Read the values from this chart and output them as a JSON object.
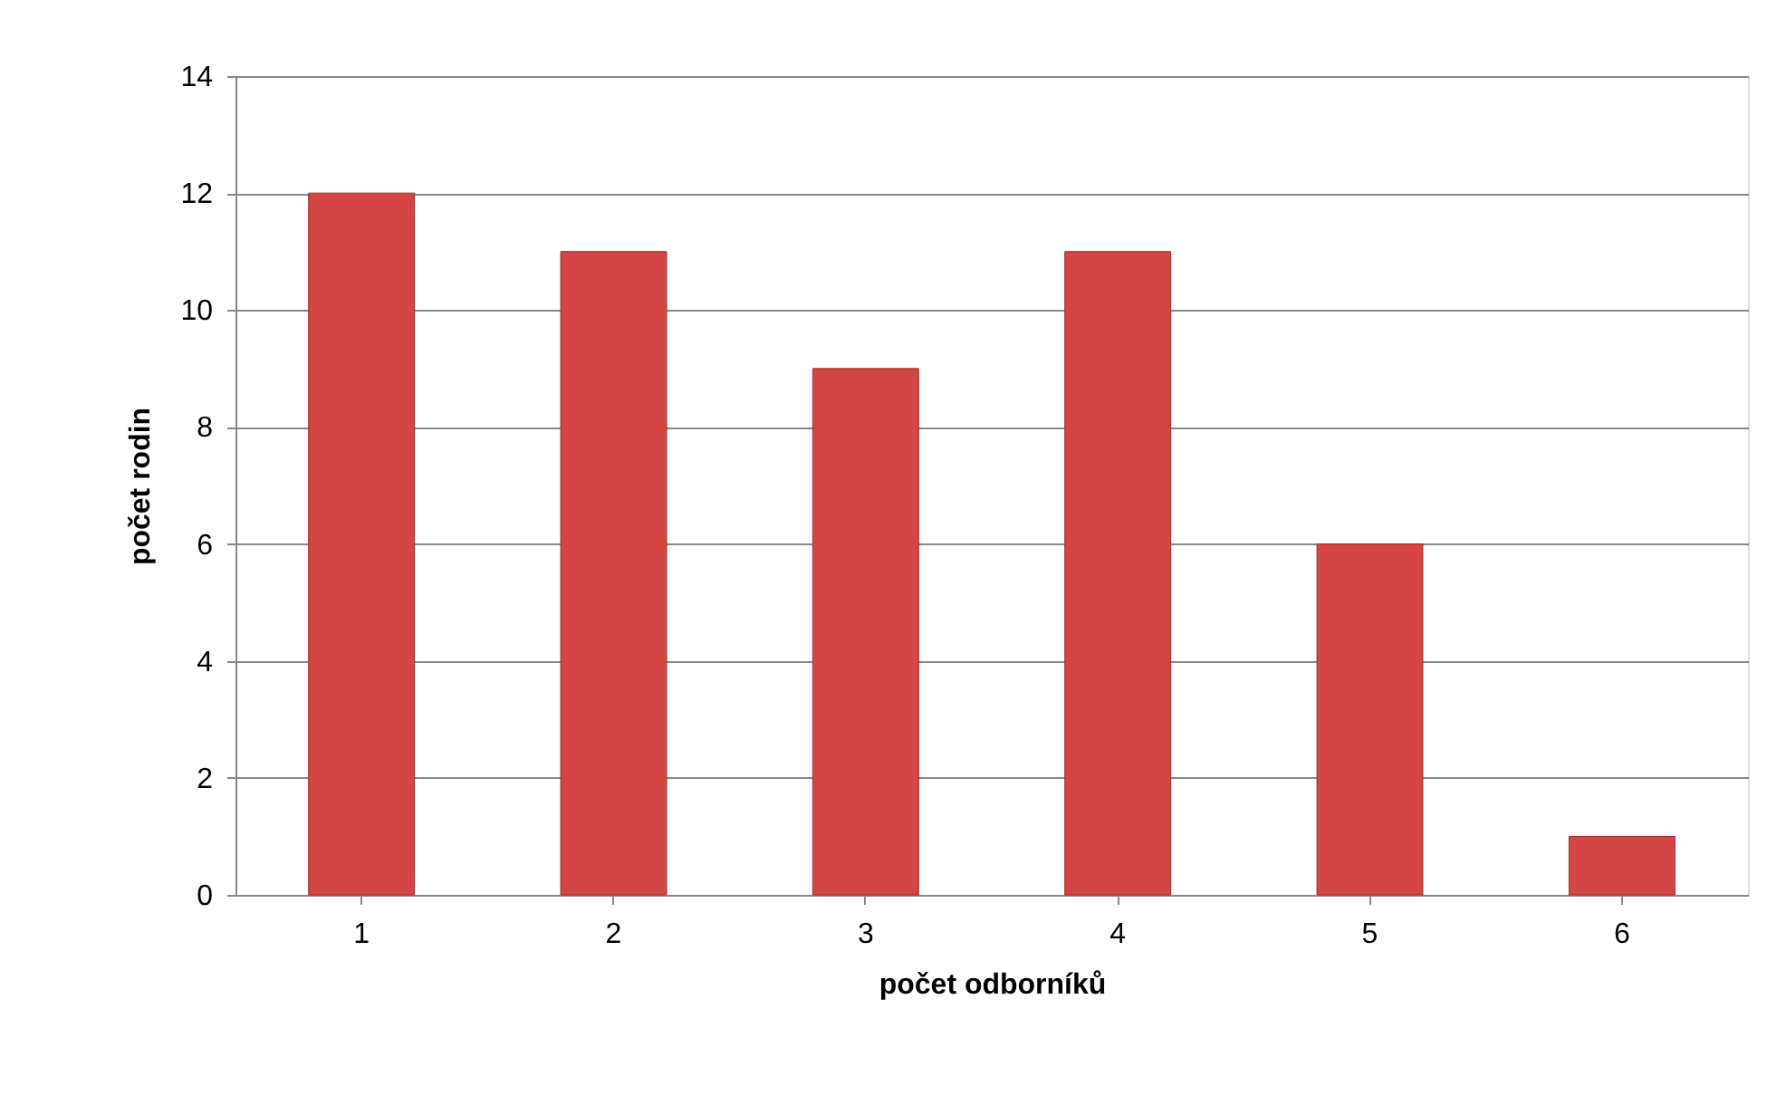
{
  "chart_data": {
    "type": "bar",
    "xlabel": "počet odborníků",
    "ylabel": "počet rodin",
    "categories": [
      "1",
      "2",
      "3",
      "4",
      "5",
      "6"
    ],
    "values": [
      12,
      11,
      9,
      11,
      6,
      1
    ],
    "color": "#d44545",
    "ylim": [
      0,
      14
    ],
    "yticks": [
      0,
      2,
      4,
      6,
      8,
      10,
      12,
      14
    ],
    "grid": "y"
  }
}
